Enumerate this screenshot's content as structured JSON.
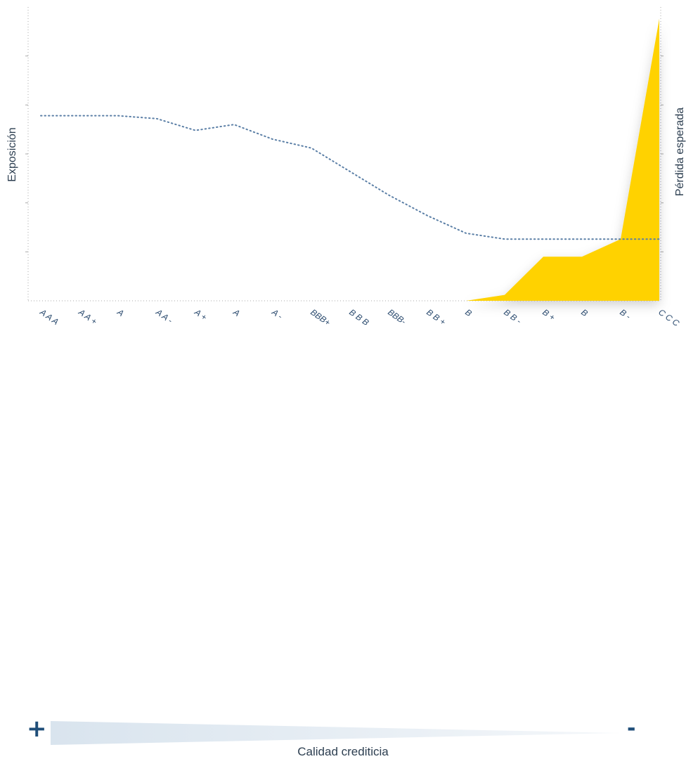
{
  "chart_data": {
    "type": "line+area",
    "categories": [
      "A A A",
      "A A +",
      "A",
      "A A -",
      "A +",
      "A",
      "A -",
      "BBB+",
      "B B B",
      "BBB-",
      "B B +",
      "B",
      "B B -",
      "B +",
      "B",
      "B -",
      "C C C"
    ],
    "y_left_label": "Exposición",
    "y_right_label": "Pérdida esperada",
    "xlabel": "Calidad crediticia",
    "series": [
      {
        "name": "Exposición",
        "style": "dotted-line",
        "color": "#5b7fa6",
        "values": [
          0.63,
          0.63,
          0.63,
          0.62,
          0.58,
          0.6,
          0.55,
          0.52,
          0.44,
          0.36,
          0.29,
          0.23,
          0.21,
          0.21,
          0.21,
          0.21,
          0.21
        ]
      },
      {
        "name": "Pérdida esperada",
        "style": "area",
        "color": "#ffd200",
        "values": [
          0,
          0,
          0,
          0,
          0,
          0,
          0,
          0,
          0,
          0,
          0,
          0,
          0.02,
          0.15,
          0.15,
          0.21,
          0.96
        ]
      }
    ],
    "ylim": [
      0,
      1
    ],
    "grid": false
  },
  "footer": {
    "plus": "+",
    "minus": "-",
    "quality_label": "Calidad crediticia"
  }
}
